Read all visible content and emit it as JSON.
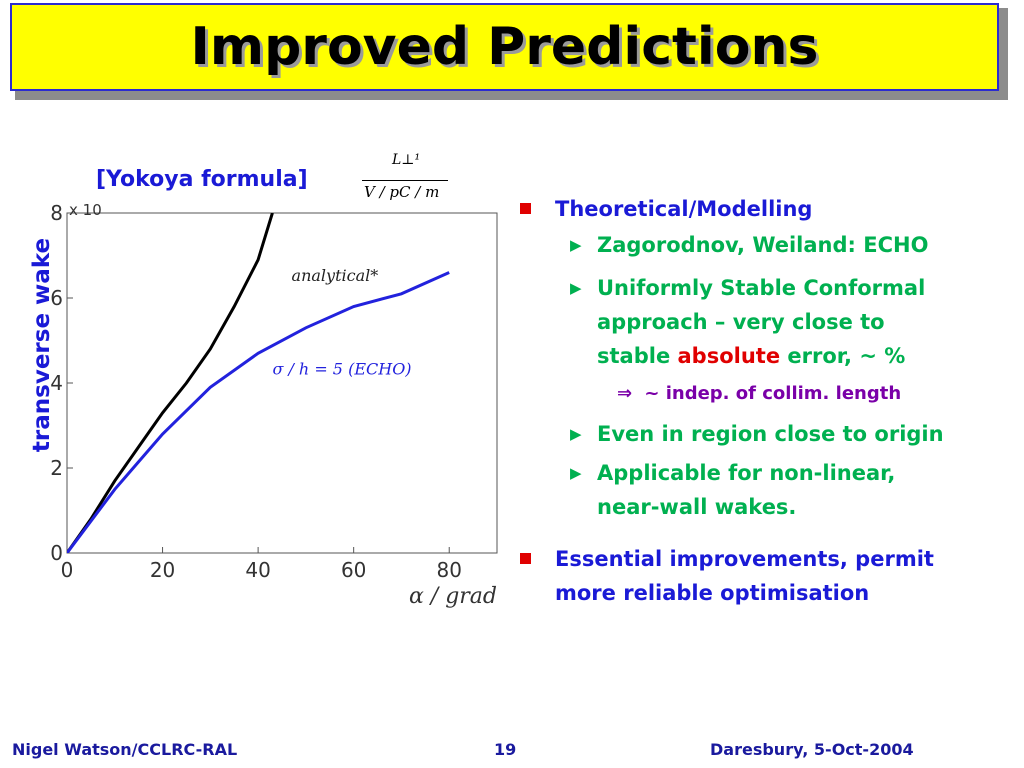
{
  "slide": {
    "title": "Improved Predictions",
    "yokoya": "[Yokoya formula]",
    "fraction": {
      "numerator": "L⊥¹",
      "denominator": "V / pC / m"
    },
    "ylabel": "transverse wake",
    "footer": {
      "left": "Nigel Watson/CCLRC-RAL",
      "center": "19",
      "right": "Daresbury, 5-Oct-2004"
    },
    "bullets": {
      "b1": "Theoretical/Modelling",
      "b1_1": "Zagorodnov, Weiland: ECHO",
      "b1_2_line1": "Uniformly Stable Conformal",
      "b1_2_line2": "approach – very close to",
      "b1_2_line3_a": "stable ",
      "b1_2_line3_b": "absolute",
      "b1_2_line3_c": " error, ~ %",
      "b1_2_sub_arrow": "⇒",
      "b1_2_sub": "~ indep. of collim. length",
      "b1_3": "Even in region close to origin",
      "b1_4_line1": "Applicable for non-linear,",
      "b1_4_line2": "near-wall wakes.",
      "b2_line1": "Essential improvements, permit",
      "b2_line2": "more reliable optimisation",
      "arrow_glyph": "▶"
    }
  },
  "colors": {
    "title_bg": "#ffff00",
    "title_border": "#2b2bd0",
    "heading_blue": "#1a1ad6",
    "bullet_green": "#00b050",
    "bullet_red": "#e00000",
    "sub_purple": "#7a00a8",
    "footer_blue": "#1a1a9e"
  },
  "chart_data": {
    "type": "line",
    "xlabel": "α / grad",
    "ylabel": "transverse wake",
    "y_multiplier": "x 10",
    "x_ticks": [
      0,
      20,
      40,
      60,
      80
    ],
    "y_ticks": [
      0,
      2,
      4,
      6,
      8
    ],
    "xlim": [
      0,
      90
    ],
    "ylim": [
      0,
      8
    ],
    "grid": false,
    "annotations": [
      "analytical*",
      "σ / h = 5 (ECHO)"
    ],
    "series": [
      {
        "name": "analytical*",
        "color": "#000000",
        "x": [
          0,
          5,
          10,
          15,
          20,
          25,
          30,
          35,
          40,
          43
        ],
        "y": [
          0,
          0.8,
          1.7,
          2.5,
          3.3,
          4.0,
          4.8,
          5.8,
          6.9,
          8.0
        ]
      },
      {
        "name": "σ / h = 5 (ECHO)",
        "color": "#2222dd",
        "x": [
          0,
          10,
          20,
          30,
          40,
          50,
          60,
          70,
          80
        ],
        "y": [
          0,
          1.5,
          2.8,
          3.9,
          4.7,
          5.3,
          5.8,
          6.1,
          6.6
        ]
      }
    ]
  }
}
